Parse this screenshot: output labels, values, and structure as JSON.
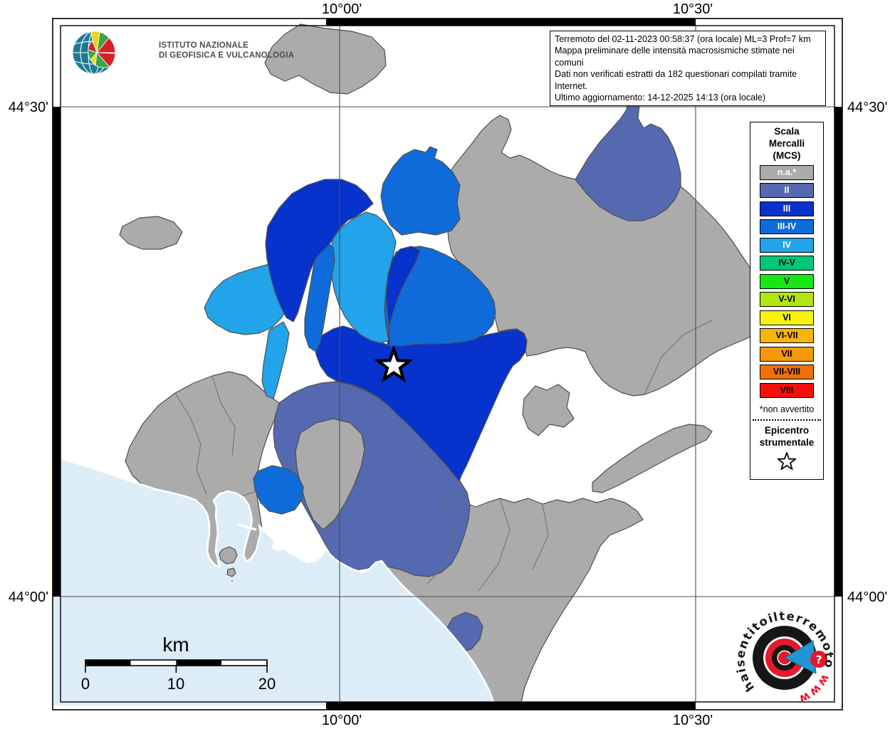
{
  "info_box": {
    "lines": [
      "Terremoto del 02-11-2023 00:58:37 (ora locale) ML=3 Prof=7 km",
      "Mappa preliminare delle intensità macrosismiche stimate nei comuni",
      "Dati non verificati estratti da 182 questionari compilati tramite Internet.",
      "Ultimo aggiornamento: 14-12-2025 14:13 (ora locale)"
    ]
  },
  "ingv_logo": {
    "line1": "ISTITUTO NAZIONALE",
    "line2": "DI GEOFISICA E VULCANOLOGIA"
  },
  "axis_labels": {
    "top_left": "10°00'",
    "top_right": "10°30'",
    "bottom_left": "10°00'",
    "bottom_right": "10°30'",
    "left_top": "44°30'",
    "left_bottom": "44°00'",
    "right_top": "44°30'",
    "right_bottom": "44°00'"
  },
  "legend": {
    "title": [
      "Scala",
      "Mercalli",
      "(MCS)"
    ],
    "entries": [
      {
        "label": "n.a.*",
        "color": "#ABABAB",
        "text": "#ffffff"
      },
      {
        "label": "II",
        "color": "#5569B0",
        "text": "#ffffff"
      },
      {
        "label": "III",
        "color": "#0733CC",
        "text": "#ffffff"
      },
      {
        "label": "III-IV",
        "color": "#0F6BD9",
        "text": "#ffffff"
      },
      {
        "label": "IV",
        "color": "#22A3EA",
        "text": "#ffffff"
      },
      {
        "label": "IV-V",
        "color": "#00C878",
        "text": "#000000"
      },
      {
        "label": "V",
        "color": "#15E815",
        "text": "#000000"
      },
      {
        "label": "V-VI",
        "color": "#B2E612",
        "text": "#000000"
      },
      {
        "label": "VI",
        "color": "#F7F30A",
        "text": "#000000"
      },
      {
        "label": "VI-VII",
        "color": "#F7B50A",
        "text": "#000000"
      },
      {
        "label": "VII",
        "color": "#F79905",
        "text": "#000000"
      },
      {
        "label": "VII-VIII",
        "color": "#EF7005",
        "text": "#000000"
      },
      {
        "label": "VIII",
        "color": "#F50F0A",
        "text": "#000000"
      }
    ],
    "footnote": "*non avvertito",
    "epicenter_label": [
      "Epicentro",
      "strumentale"
    ]
  },
  "scale_bar": {
    "unit": "km",
    "ticks": [
      "0",
      "10",
      "20"
    ]
  },
  "branding": {
    "circle_text_black": "haisentitoilterremoto",
    "circle_text_red": ".it",
    "www_text": "www.",
    "question_mark": "?"
  },
  "map": {
    "sea_color": "#DCEDF8",
    "intensity_colors": {
      "na": "#ABABAB",
      "II": "#5569B0",
      "III": "#0733CC",
      "III-IV": "#0F6BD9",
      "IV": "#22A3EA"
    },
    "epicenter": {
      "symbol": "star"
    }
  }
}
